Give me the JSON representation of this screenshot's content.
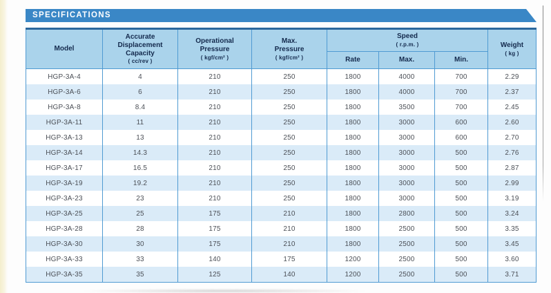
{
  "page": {
    "section_title": "SPECIFICATIONS"
  },
  "table": {
    "headers": {
      "model": {
        "label": "Model"
      },
      "displacement": {
        "label": "Accurate\nDisplacement\nCapacity",
        "unit": "( cc/rev )"
      },
      "operational_pressure": {
        "label": "Operational\nPressure",
        "unit": "( kgf/cm² )"
      },
      "max_pressure": {
        "label": "Max.\nPressure",
        "unit": "( kgf/cm² )"
      },
      "speed": {
        "label": "Speed",
        "unit": "( r.p.m. )"
      },
      "speed_sub": {
        "rate": "Rate",
        "max": "Max.",
        "min": "Min."
      },
      "weight": {
        "label": "Weight",
        "unit": "( kg )"
      }
    },
    "rows": [
      [
        "HGP-3A-4",
        "4",
        "210",
        "250",
        "1800",
        "4000",
        "700",
        "2.29"
      ],
      [
        "HGP-3A-6",
        "6",
        "210",
        "250",
        "1800",
        "4000",
        "700",
        "2.37"
      ],
      [
        "HGP-3A-8",
        "8.4",
        "210",
        "250",
        "1800",
        "3500",
        "700",
        "2.45"
      ],
      [
        "HGP-3A-11",
        "11",
        "210",
        "250",
        "1800",
        "3000",
        "600",
        "2.60"
      ],
      [
        "HGP-3A-13",
        "13",
        "210",
        "250",
        "1800",
        "3000",
        "600",
        "2.70"
      ],
      [
        "HGP-3A-14",
        "14.3",
        "210",
        "250",
        "1800",
        "3000",
        "500",
        "2.76"
      ],
      [
        "HGP-3A-17",
        "16.5",
        "210",
        "250",
        "1800",
        "3000",
        "500",
        "2.87"
      ],
      [
        "HGP-3A-19",
        "19.2",
        "210",
        "250",
        "1800",
        "3000",
        "500",
        "2.99"
      ],
      [
        "HGP-3A-23",
        "23",
        "210",
        "250",
        "1800",
        "3000",
        "500",
        "3.19"
      ],
      [
        "HGP-3A-25",
        "25",
        "175",
        "210",
        "1800",
        "2800",
        "500",
        "3.24"
      ],
      [
        "HGP-3A-28",
        "28",
        "175",
        "210",
        "1800",
        "2500",
        "500",
        "3.35"
      ],
      [
        "HGP-3A-30",
        "30",
        "175",
        "210",
        "1800",
        "2500",
        "500",
        "3.45"
      ],
      [
        "HGP-3A-33",
        "33",
        "140",
        "175",
        "1200",
        "2500",
        "500",
        "3.60"
      ],
      [
        "HGP-3A-35",
        "35",
        "125",
        "140",
        "1200",
        "2500",
        "500",
        "3.71"
      ]
    ],
    "cell_names": [
      "model",
      "displacement-capacity",
      "operational-pressure",
      "max-pressure",
      "speed-rate",
      "speed-max",
      "speed-min",
      "weight"
    ]
  },
  "colors": {
    "title_bar": "#3a87c6",
    "header_bg": "#aad3eb",
    "header_text": "#142a4d",
    "grid_border": "#4f9ad2",
    "table_top_border": "#2b679c",
    "row_stripe": "#daebf8",
    "body_text": "#4b4f56"
  }
}
